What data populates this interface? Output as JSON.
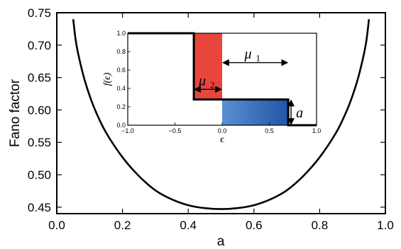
{
  "chart_data": [
    {
      "type": "line",
      "title": "",
      "xlabel": "a",
      "ylabel": "Fano factor",
      "xlim": [
        0.0,
        1.0
      ],
      "ylim": [
        0.44,
        0.75
      ],
      "xticks": [
        "0.0",
        "0.2",
        "0.4",
        "0.6",
        "0.8",
        "1.0"
      ],
      "yticks": [
        "0.45",
        "0.50",
        "0.55",
        "0.60",
        "0.65",
        "0.70",
        "0.75"
      ],
      "grid": false,
      "series": [
        {
          "color": "#000000",
          "x": [
            0.05,
            0.06,
            0.08,
            0.1,
            0.12,
            0.15,
            0.2,
            0.25,
            0.3,
            0.35,
            0.4,
            0.45,
            0.5,
            0.55,
            0.6,
            0.65,
            0.7,
            0.75,
            0.8,
            0.85,
            0.88,
            0.9,
            0.92,
            0.94,
            0.95
          ],
          "y": [
            0.74,
            0.7,
            0.655,
            0.622,
            0.596,
            0.565,
            0.527,
            0.498,
            0.476,
            0.462,
            0.453,
            0.4485,
            0.447,
            0.4485,
            0.453,
            0.462,
            0.476,
            0.498,
            0.527,
            0.565,
            0.596,
            0.622,
            0.655,
            0.7,
            0.74
          ]
        }
      ]
    },
    {
      "type": "area",
      "role": "inset",
      "xlabel": "ϵ",
      "ylabel": "f(ϵ)",
      "xlim": [
        -1.0,
        1.0
      ],
      "ylim": [
        0.0,
        1.0
      ],
      "xticks": [
        "−1.0",
        "−0.5",
        "0.0",
        "0.5",
        "1.0"
      ],
      "yticks": [
        "0.0",
        "0.2",
        "0.4",
        "0.6",
        "0.8",
        "1.0"
      ],
      "step": [
        {
          "x": -1.0,
          "y": 1.0
        },
        {
          "x": -0.3,
          "y": 1.0
        },
        {
          "x": -0.3,
          "y": 0.28
        },
        {
          "x": 0.7,
          "y": 0.28
        },
        {
          "x": 0.7,
          "y": 0.0
        },
        {
          "x": 1.0,
          "y": 0.0
        }
      ],
      "regions": [
        {
          "x0": -0.3,
          "x1": 0.0,
          "y0": 0.28,
          "y1": 1.0,
          "color": "#e8453c"
        },
        {
          "x0": 0.0,
          "x1": 0.7,
          "y0": 0.0,
          "y1": 0.28,
          "color": "#2a63b0"
        }
      ],
      "annotations": [
        {
          "label": "μ",
          "sub": "2",
          "from": -0.3,
          "to": 0.0,
          "y": 0.39
        },
        {
          "label": "μ",
          "sub": "1",
          "from": 0.0,
          "to": 0.7,
          "y": 0.68
        },
        {
          "label": "a",
          "x": 0.73,
          "from": 0.0,
          "to": 0.28
        }
      ]
    }
  ]
}
